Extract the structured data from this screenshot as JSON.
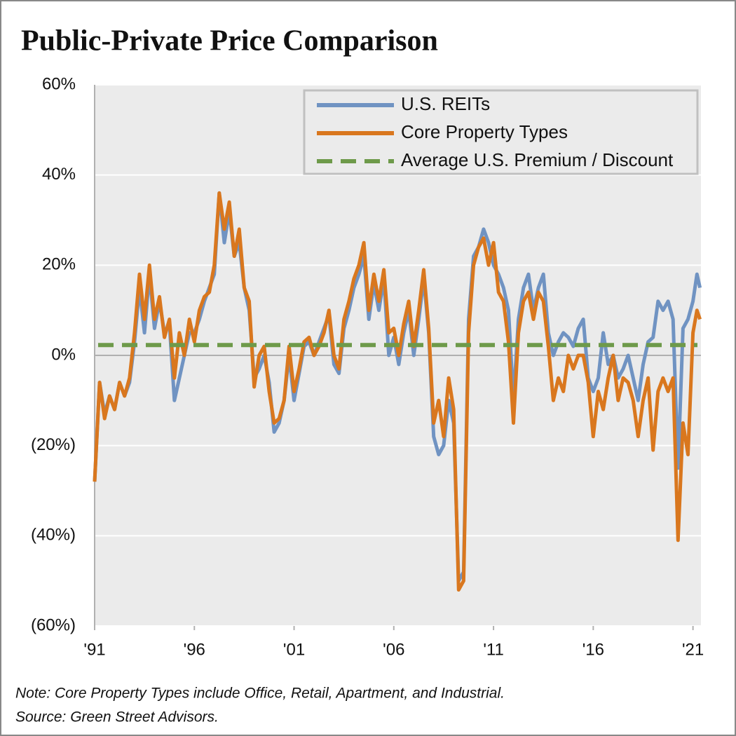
{
  "chart_data": {
    "type": "line",
    "title": "Public-Private Price Comparison",
    "notes": [
      "Note: Core Property Types include Office, Retail, Apartment, and Industrial.",
      "Source: Green Street Advisors."
    ],
    "x": [
      1991,
      1991.25,
      1991.5,
      1991.75,
      1992,
      1992.25,
      1992.5,
      1992.75,
      1993,
      1993.25,
      1993.5,
      1993.75,
      1994,
      1994.25,
      1994.5,
      1994.75,
      1995,
      1995.25,
      1995.5,
      1995.75,
      1996,
      1996.25,
      1996.5,
      1996.75,
      1997,
      1997.25,
      1997.5,
      1997.75,
      1998,
      1998.25,
      1998.5,
      1998.75,
      1999,
      1999.25,
      1999.5,
      1999.75,
      2000,
      2000.25,
      2000.5,
      2000.75,
      2001,
      2001.25,
      2001.5,
      2001.75,
      2002,
      2002.25,
      2002.5,
      2002.75,
      2003,
      2003.25,
      2003.5,
      2003.75,
      2004,
      2004.25,
      2004.5,
      2004.75,
      2005,
      2005.25,
      2005.5,
      2005.75,
      2006,
      2006.25,
      2006.5,
      2006.75,
      2007,
      2007.25,
      2007.5,
      2007.75,
      2008,
      2008.25,
      2008.5,
      2008.75,
      2009,
      2009.25,
      2009.5,
      2009.75,
      2010,
      2010.25,
      2010.5,
      2010.75,
      2011,
      2011.25,
      2011.5,
      2011.75,
      2012,
      2012.25,
      2012.5,
      2012.75,
      2013,
      2013.25,
      2013.5,
      2013.75,
      2014,
      2014.25,
      2014.5,
      2014.75,
      2015,
      2015.25,
      2015.5,
      2015.75,
      2016,
      2016.25,
      2016.5,
      2016.75,
      2017,
      2017.25,
      2017.5,
      2017.75,
      2018,
      2018.25,
      2018.5,
      2018.75,
      2019,
      2019.25,
      2019.5,
      2019.75,
      2020,
      2020.25,
      2020.5,
      2020.75,
      2021,
      2021.2,
      2021.35
    ],
    "series": [
      {
        "name": "U.S. REITs",
        "color": "#7093c2",
        "values": [
          -28,
          -6,
          -13,
          -9,
          -12,
          -6,
          -9,
          -6,
          3,
          15,
          5,
          18,
          6,
          12,
          5,
          7,
          -10,
          -5,
          0,
          5,
          5,
          8,
          12,
          15,
          18,
          36,
          25,
          32,
          22,
          25,
          15,
          10,
          -5,
          -3,
          0,
          -6,
          -17,
          -15,
          -10,
          0,
          -10,
          -4,
          2,
          3,
          0,
          3,
          6,
          9,
          -2,
          -4,
          6,
          10,
          15,
          18,
          22,
          8,
          16,
          10,
          17,
          0,
          4,
          -2,
          5,
          10,
          0,
          8,
          17,
          5,
          -18,
          -22,
          -20,
          -10,
          -15,
          -50,
          -48,
          8,
          22,
          24,
          28,
          25,
          20,
          18,
          15,
          10,
          -10,
          8,
          15,
          18,
          10,
          15,
          18,
          5,
          0,
          3,
          5,
          4,
          2,
          6,
          8,
          -5,
          -8,
          -5,
          5,
          -2,
          0,
          -5,
          -3,
          0,
          -5,
          -10,
          -2,
          3,
          4,
          12,
          10,
          12,
          8,
          -25,
          6,
          8,
          12,
          18,
          15
        ]
      },
      {
        "name": "Core Property Types",
        "color": "#d9771e",
        "values": [
          -28,
          -6,
          -14,
          -9,
          -12,
          -6,
          -9,
          -5,
          5,
          18,
          8,
          20,
          8,
          13,
          4,
          8,
          -5,
          5,
          0,
          8,
          3,
          10,
          13,
          14,
          20,
          36,
          28,
          34,
          22,
          28,
          15,
          12,
          -7,
          0,
          2,
          -8,
          -15,
          -14,
          -10,
          2,
          -8,
          -3,
          3,
          4,
          0,
          2,
          5,
          10,
          0,
          -3,
          8,
          12,
          17,
          20,
          25,
          10,
          18,
          12,
          19,
          5,
          6,
          0,
          7,
          12,
          2,
          10,
          19,
          6,
          -15,
          -10,
          -18,
          -5,
          -12,
          -52,
          -50,
          5,
          20,
          24,
          26,
          20,
          25,
          14,
          12,
          3,
          -15,
          5,
          12,
          14,
          8,
          14,
          12,
          2,
          -10,
          -5,
          -8,
          0,
          -3,
          0,
          0,
          -6,
          -18,
          -8,
          -12,
          -5,
          0,
          -10,
          -5,
          -6,
          -10,
          -18,
          -10,
          -5,
          -21,
          -8,
          -5,
          -8,
          -5,
          -41,
          -15,
          -22,
          5,
          10,
          8
        ]
      }
    ],
    "average": {
      "name": "Average U.S. Premium / Discount",
      "value": 2.3,
      "color": "#6e9a4a"
    },
    "xlim": [
      1991,
      2021.4
    ],
    "xticks": [
      {
        "value": 1991,
        "label": "'91"
      },
      {
        "value": 1996,
        "label": "'96"
      },
      {
        "value": 2001,
        "label": "'01"
      },
      {
        "value": 2006,
        "label": "'06"
      },
      {
        "value": 2011,
        "label": "'11"
      },
      {
        "value": 2016,
        "label": "'16"
      },
      {
        "value": 2021,
        "label": "'21"
      }
    ],
    "ylim": [
      -60,
      60
    ],
    "yticks": [
      {
        "value": 60,
        "label": "60%"
      },
      {
        "value": 40,
        "label": "40%"
      },
      {
        "value": 20,
        "label": "20%"
      },
      {
        "value": 0,
        "label": "0%"
      },
      {
        "value": -20,
        "label": "(20%)"
      },
      {
        "value": -40,
        "label": "(40%)"
      },
      {
        "value": -60,
        "label": "(60%)"
      }
    ],
    "grid": true
  }
}
